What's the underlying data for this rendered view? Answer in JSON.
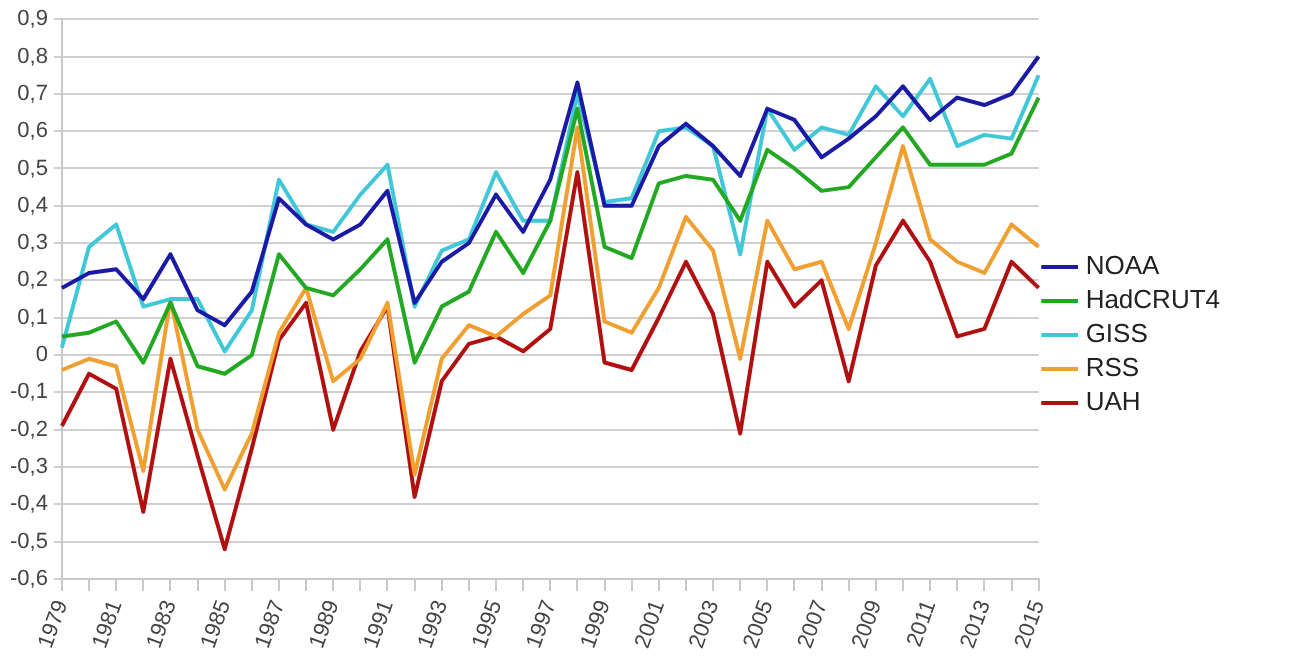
{
  "chart_data": {
    "type": "line",
    "categories": [
      "1979",
      null,
      "1981",
      null,
      "1983",
      null,
      "1985",
      null,
      "1987",
      null,
      "1989",
      null,
      "1991",
      null,
      "1993",
      null,
      "1995",
      null,
      "1997",
      null,
      "1999",
      null,
      "2001",
      null,
      "2003",
      null,
      "2005",
      null,
      "2007",
      null,
      "2009",
      null,
      "2011",
      null,
      "2013",
      null,
      "2015"
    ],
    "series": [
      {
        "name": "NOAA",
        "color": "#1a1aa6",
        "values": [
          0.18,
          0.22,
          0.23,
          0.15,
          0.27,
          0.12,
          0.08,
          0.17,
          0.42,
          0.35,
          0.31,
          0.35,
          0.44,
          0.14,
          0.25,
          0.3,
          0.43,
          0.33,
          0.47,
          0.73,
          0.4,
          0.4,
          0.56,
          0.62,
          0.56,
          0.48,
          0.66,
          0.63,
          0.53,
          0.58,
          0.64,
          0.72,
          0.63,
          0.69,
          0.67,
          0.7,
          0.8
        ]
      },
      {
        "name": "HadCRUT4",
        "color": "#22a822",
        "values": [
          0.05,
          0.06,
          0.09,
          -0.02,
          0.14,
          -0.03,
          -0.05,
          0.0,
          0.27,
          0.18,
          0.16,
          0.23,
          0.31,
          -0.02,
          0.13,
          0.17,
          0.33,
          0.22,
          0.36,
          0.66,
          0.29,
          0.26,
          0.46,
          0.48,
          0.47,
          0.36,
          0.55,
          0.5,
          0.44,
          0.45,
          0.53,
          0.61,
          0.51,
          0.51,
          0.51,
          0.54,
          0.69
        ]
      },
      {
        "name": "GISS",
        "color": "#40c8d8",
        "values": [
          0.02,
          0.29,
          0.35,
          0.13,
          0.15,
          0.15,
          0.01,
          0.12,
          0.47,
          0.35,
          0.33,
          0.43,
          0.51,
          0.13,
          0.28,
          0.31,
          0.49,
          0.36,
          0.36,
          0.7,
          0.41,
          0.42,
          0.6,
          0.61,
          0.56,
          0.27,
          0.66,
          0.55,
          0.61,
          0.59,
          0.72,
          0.64,
          0.74,
          0.56,
          0.59,
          0.58,
          0.75
        ]
      },
      {
        "name": "RSS",
        "color": "#f0a030",
        "values": [
          -0.04,
          -0.01,
          -0.03,
          -0.31,
          0.15,
          -0.2,
          -0.36,
          -0.21,
          0.06,
          0.18,
          -0.07,
          -0.01,
          0.14,
          -0.32,
          -0.01,
          0.08,
          0.05,
          0.11,
          0.16,
          0.61,
          0.09,
          0.06,
          0.18,
          0.37,
          0.28,
          -0.01,
          0.36,
          0.23,
          0.25,
          0.07,
          0.3,
          0.56,
          0.31,
          0.25,
          0.22,
          0.35,
          0.29
        ]
      },
      {
        "name": "UAH",
        "color": "#b01010",
        "values": [
          -0.19,
          -0.05,
          -0.09,
          -0.42,
          -0.01,
          -0.27,
          -0.52,
          -0.25,
          0.04,
          0.14,
          -0.2,
          0.01,
          0.13,
          -0.38,
          -0.07,
          0.03,
          0.05,
          0.01,
          0.07,
          0.49,
          -0.02,
          -0.04,
          0.1,
          0.25,
          0.11,
          -0.21,
          0.25,
          0.13,
          0.2,
          -0.07,
          0.24,
          0.36,
          0.25,
          0.05,
          0.07,
          0.25,
          0.18
        ]
      }
    ],
    "ylim": [
      -0.6,
      0.9
    ],
    "yticks": [
      {
        "value": -0.6,
        "label": "-0,6"
      },
      {
        "value": -0.5,
        "label": "-0,5"
      },
      {
        "value": -0.4,
        "label": "-0,4"
      },
      {
        "value": -0.3,
        "label": "-0,3"
      },
      {
        "value": -0.2,
        "label": "-0,2"
      },
      {
        "value": -0.1,
        "label": "-0,1"
      },
      0,
      {
        "value": 0.1,
        "label": "0,1"
      },
      {
        "value": 0.2,
        "label": "0,2"
      },
      {
        "value": 0.3,
        "label": "0,3"
      },
      {
        "value": 0.4,
        "label": "0,4"
      },
      {
        "value": 0.5,
        "label": "0,5"
      },
      {
        "value": 0.6,
        "label": "0,6"
      },
      {
        "value": 0.7,
        "label": "0,7"
      },
      {
        "value": 0.8,
        "label": "0,8"
      },
      {
        "value": 0.9,
        "label": "0,9"
      }
    ],
    "grid": "y",
    "legend": "right",
    "marker": "none",
    "line_style": "solid"
  }
}
